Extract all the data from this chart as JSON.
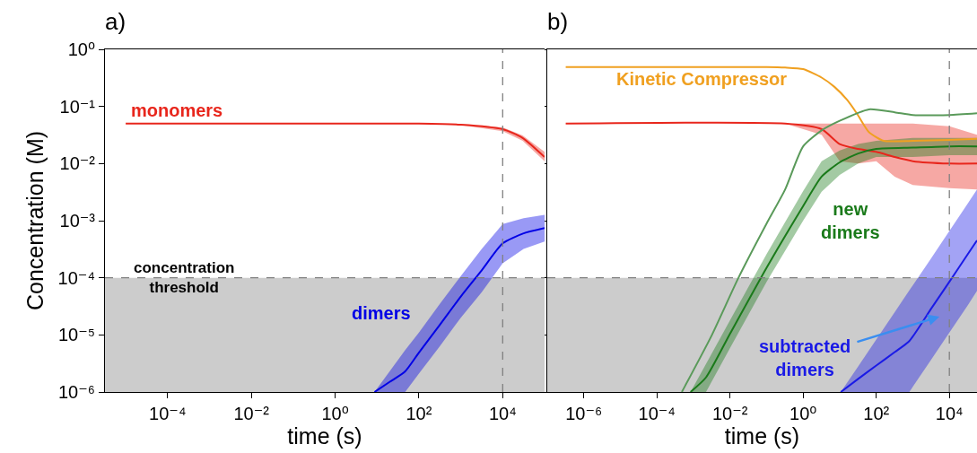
{
  "chart_data": [
    {
      "type": "line",
      "title": "a)",
      "xlabel": "time (s)",
      "ylabel": "Concentration (M)",
      "log": "xy",
      "xlim": [
        3.2e-06,
        100000
      ],
      "ylim": [
        1e-06,
        1
      ],
      "xticks": [
        {
          "value": 0.0001,
          "label": "10⁻⁴"
        },
        {
          "value": 0.01,
          "label": "10⁻²"
        },
        {
          "value": 1,
          "label": "10⁰"
        },
        {
          "value": 100,
          "label": "10²"
        },
        {
          "value": 10000,
          "label": "10⁴"
        }
      ],
      "yticks": [
        {
          "value": 1e-06,
          "label": "10⁻⁶"
        },
        {
          "value": 1e-05,
          "label": "10⁻⁵"
        },
        {
          "value": 0.0001,
          "label": "10⁻⁴"
        },
        {
          "value": 0.001,
          "label": "10⁻³"
        },
        {
          "value": 0.01,
          "label": "10⁻²"
        },
        {
          "value": 0.1,
          "label": "10⁻¹"
        },
        {
          "value": 1,
          "label": "10⁰"
        }
      ],
      "series": [
        {
          "name": "monomers",
          "color": "#e8261c",
          "x": [
            1e-05,
            100,
            1000,
            10000,
            30000,
            100000
          ],
          "values": [
            0.05,
            0.05,
            0.048,
            0.04,
            0.028,
            0.013
          ],
          "lower": [
            0.05,
            0.05,
            0.047,
            0.037,
            0.025,
            0.011
          ],
          "upper": [
            0.05,
            0.05,
            0.049,
            0.043,
            0.031,
            0.016
          ]
        },
        {
          "name": "dimers",
          "color": "#0000e6",
          "x": [
            8.7,
            20,
            47,
            100,
            316,
            1000,
            3160,
            10000,
            31600,
            100000
          ],
          "values": [
            1e-06,
            1.5e-06,
            2.3e-06,
            4.9e-06,
            1.5e-05,
            4.7e-05,
            0.000135,
            0.0004,
            0.0006,
            0.00074
          ],
          "lower": [
            1e-06,
            1e-06,
            1e-06,
            2.1e-06,
            6.3e-06,
            2e-05,
            5.6e-05,
            0.00018,
            0.00032,
            0.00043
          ],
          "upper": [
            1e-06,
            2.3e-06,
            5.4e-06,
            1.1e-05,
            3.5e-05,
            0.000107,
            0.00032,
            0.00087,
            0.0011,
            0.00126
          ]
        }
      ],
      "ref_lines": [
        {
          "axis": "y",
          "value": 0.0001,
          "label": "concentration\nthreshold",
          "color": "#808080",
          "line_style": "dashed"
        },
        {
          "axis": "x",
          "value": 10000,
          "color": "#808080",
          "line_style": "dashed"
        }
      ],
      "bands": [
        {
          "axis": "y",
          "from": 1e-06,
          "to": 0.0001,
          "color": "#cccccc"
        }
      ]
    },
    {
      "type": "line",
      "title": "b)",
      "xlabel": "time (s)",
      "log": "xy",
      "tick_labels": "x",
      "xlim": [
        1e-07,
        57000
      ],
      "ylim": [
        1e-06,
        1
      ],
      "xticks": [
        {
          "value": 1e-06,
          "label": "10⁻⁶"
        },
        {
          "value": 0.0001,
          "label": "10⁻⁴"
        },
        {
          "value": 0.01,
          "label": "10⁻²"
        },
        {
          "value": 1,
          "label": "10⁰"
        },
        {
          "value": 100,
          "label": "10²"
        },
        {
          "value": 10000,
          "label": "10⁴"
        }
      ],
      "yticks": [
        {
          "value": 1e-06,
          "label": null
        },
        {
          "value": 1e-05,
          "label": null
        },
        {
          "value": 0.0001,
          "label": null
        },
        {
          "value": 0.001,
          "label": null
        },
        {
          "value": 0.01,
          "label": null
        },
        {
          "value": 0.1,
          "label": null
        },
        {
          "value": 1,
          "label": null
        }
      ],
      "series": [
        {
          "name": "Kinetic Compressor",
          "color": "#f0a020",
          "x": [
            3.2e-07,
            0.1,
            0.32,
            1,
            3.2,
            7.2,
            16,
            30,
            62,
            160,
            1000,
            10000,
            57000
          ],
          "values": [
            0.49,
            0.49,
            0.48,
            0.45,
            0.32,
            0.22,
            0.13,
            0.074,
            0.036,
            0.025,
            0.025,
            0.026,
            0.027
          ]
        },
        {
          "color": "#e8261c",
          "x": [
            3.2e-07,
            0.32,
            3.2,
            10,
            32,
            100,
            320,
            1000,
            10000,
            57000
          ],
          "values": [
            0.05,
            0.05,
            0.04,
            0.022,
            0.018,
            0.016,
            0.013,
            0.011,
            0.01,
            0.01
          ],
          "lower": [
            0.05,
            0.05,
            0.032,
            0.011,
            0.01,
            0.011,
            0.0059,
            0.0042,
            0.0037,
            0.0035
          ],
          "upper": [
            0.05,
            0.05,
            0.05,
            0.05,
            0.05,
            0.05,
            0.05,
            0.05,
            0.045,
            0.032
          ]
        },
        {
          "name": "new\ndimers",
          "color": "#1a7a1a",
          "x": [
            0.00083,
            0.0022,
            0.01,
            0.1,
            1,
            3.2,
            10,
            32,
            100,
            1000,
            10000,
            57000
          ],
          "values": [
            1e-06,
            1.8e-06,
            1.05e-05,
            0.00015,
            0.0018,
            0.0059,
            0.0105,
            0.015,
            0.018,
            0.019,
            0.02,
            0.02
          ],
          "lower": [
            1e-06,
            1e-06,
            5.9e-06,
            8.5e-05,
            0.001,
            0.0032,
            0.0063,
            0.01,
            0.013,
            0.013,
            0.014,
            0.014
          ],
          "upper": [
            1e-06,
            3.1e-06,
            1.8e-05,
            0.00026,
            0.0033,
            0.011,
            0.017,
            0.022,
            0.025,
            0.028,
            0.028,
            0.028
          ]
        },
        {
          "color": "#5a9a5a",
          "x": [
            0.00048,
            0.0032,
            0.017,
            0.1,
            0.32,
            1,
            3.2,
            10,
            63,
            320,
            1000,
            10000,
            57000
          ],
          "values": [
            1e-06,
            1e-05,
            0.0001,
            0.00089,
            0.0035,
            0.02,
            0.038,
            0.056,
            0.089,
            0.079,
            0.071,
            0.071,
            0.076
          ]
        },
        {
          "name": "subtracted\ndimers",
          "color": "#1a1ae6",
          "x": [
            10.7,
            32,
            100,
            320,
            800,
            3200,
            10000,
            32000,
            57000
          ],
          "values": [
            1e-06,
            1.7e-06,
            2.9e-06,
            5e-06,
            7.8e-06,
            2.9e-05,
            8.5e-05,
            0.00026,
            0.00045
          ],
          "lower": [
            1e-06,
            1e-06,
            1e-06,
            1e-06,
            1e-06,
            3.7e-06,
            1.1e-05,
            3.3e-05,
            5.9e-05
          ],
          "upper": [
            1e-06,
            2.8e-06,
            8.3e-06,
            2.5e-05,
            6e-05,
            0.00022,
            0.00066,
            0.002,
            0.0035
          ]
        }
      ],
      "ref_lines": [
        {
          "axis": "y",
          "value": 0.0001,
          "color": "#808080",
          "line_style": "dashed"
        },
        {
          "axis": "x",
          "value": 10000,
          "color": "#808080",
          "line_style": "dashed"
        }
      ],
      "bands": [
        {
          "axis": "y",
          "from": 1e-06,
          "to": 0.0001,
          "color": "#cccccc"
        }
      ]
    }
  ]
}
